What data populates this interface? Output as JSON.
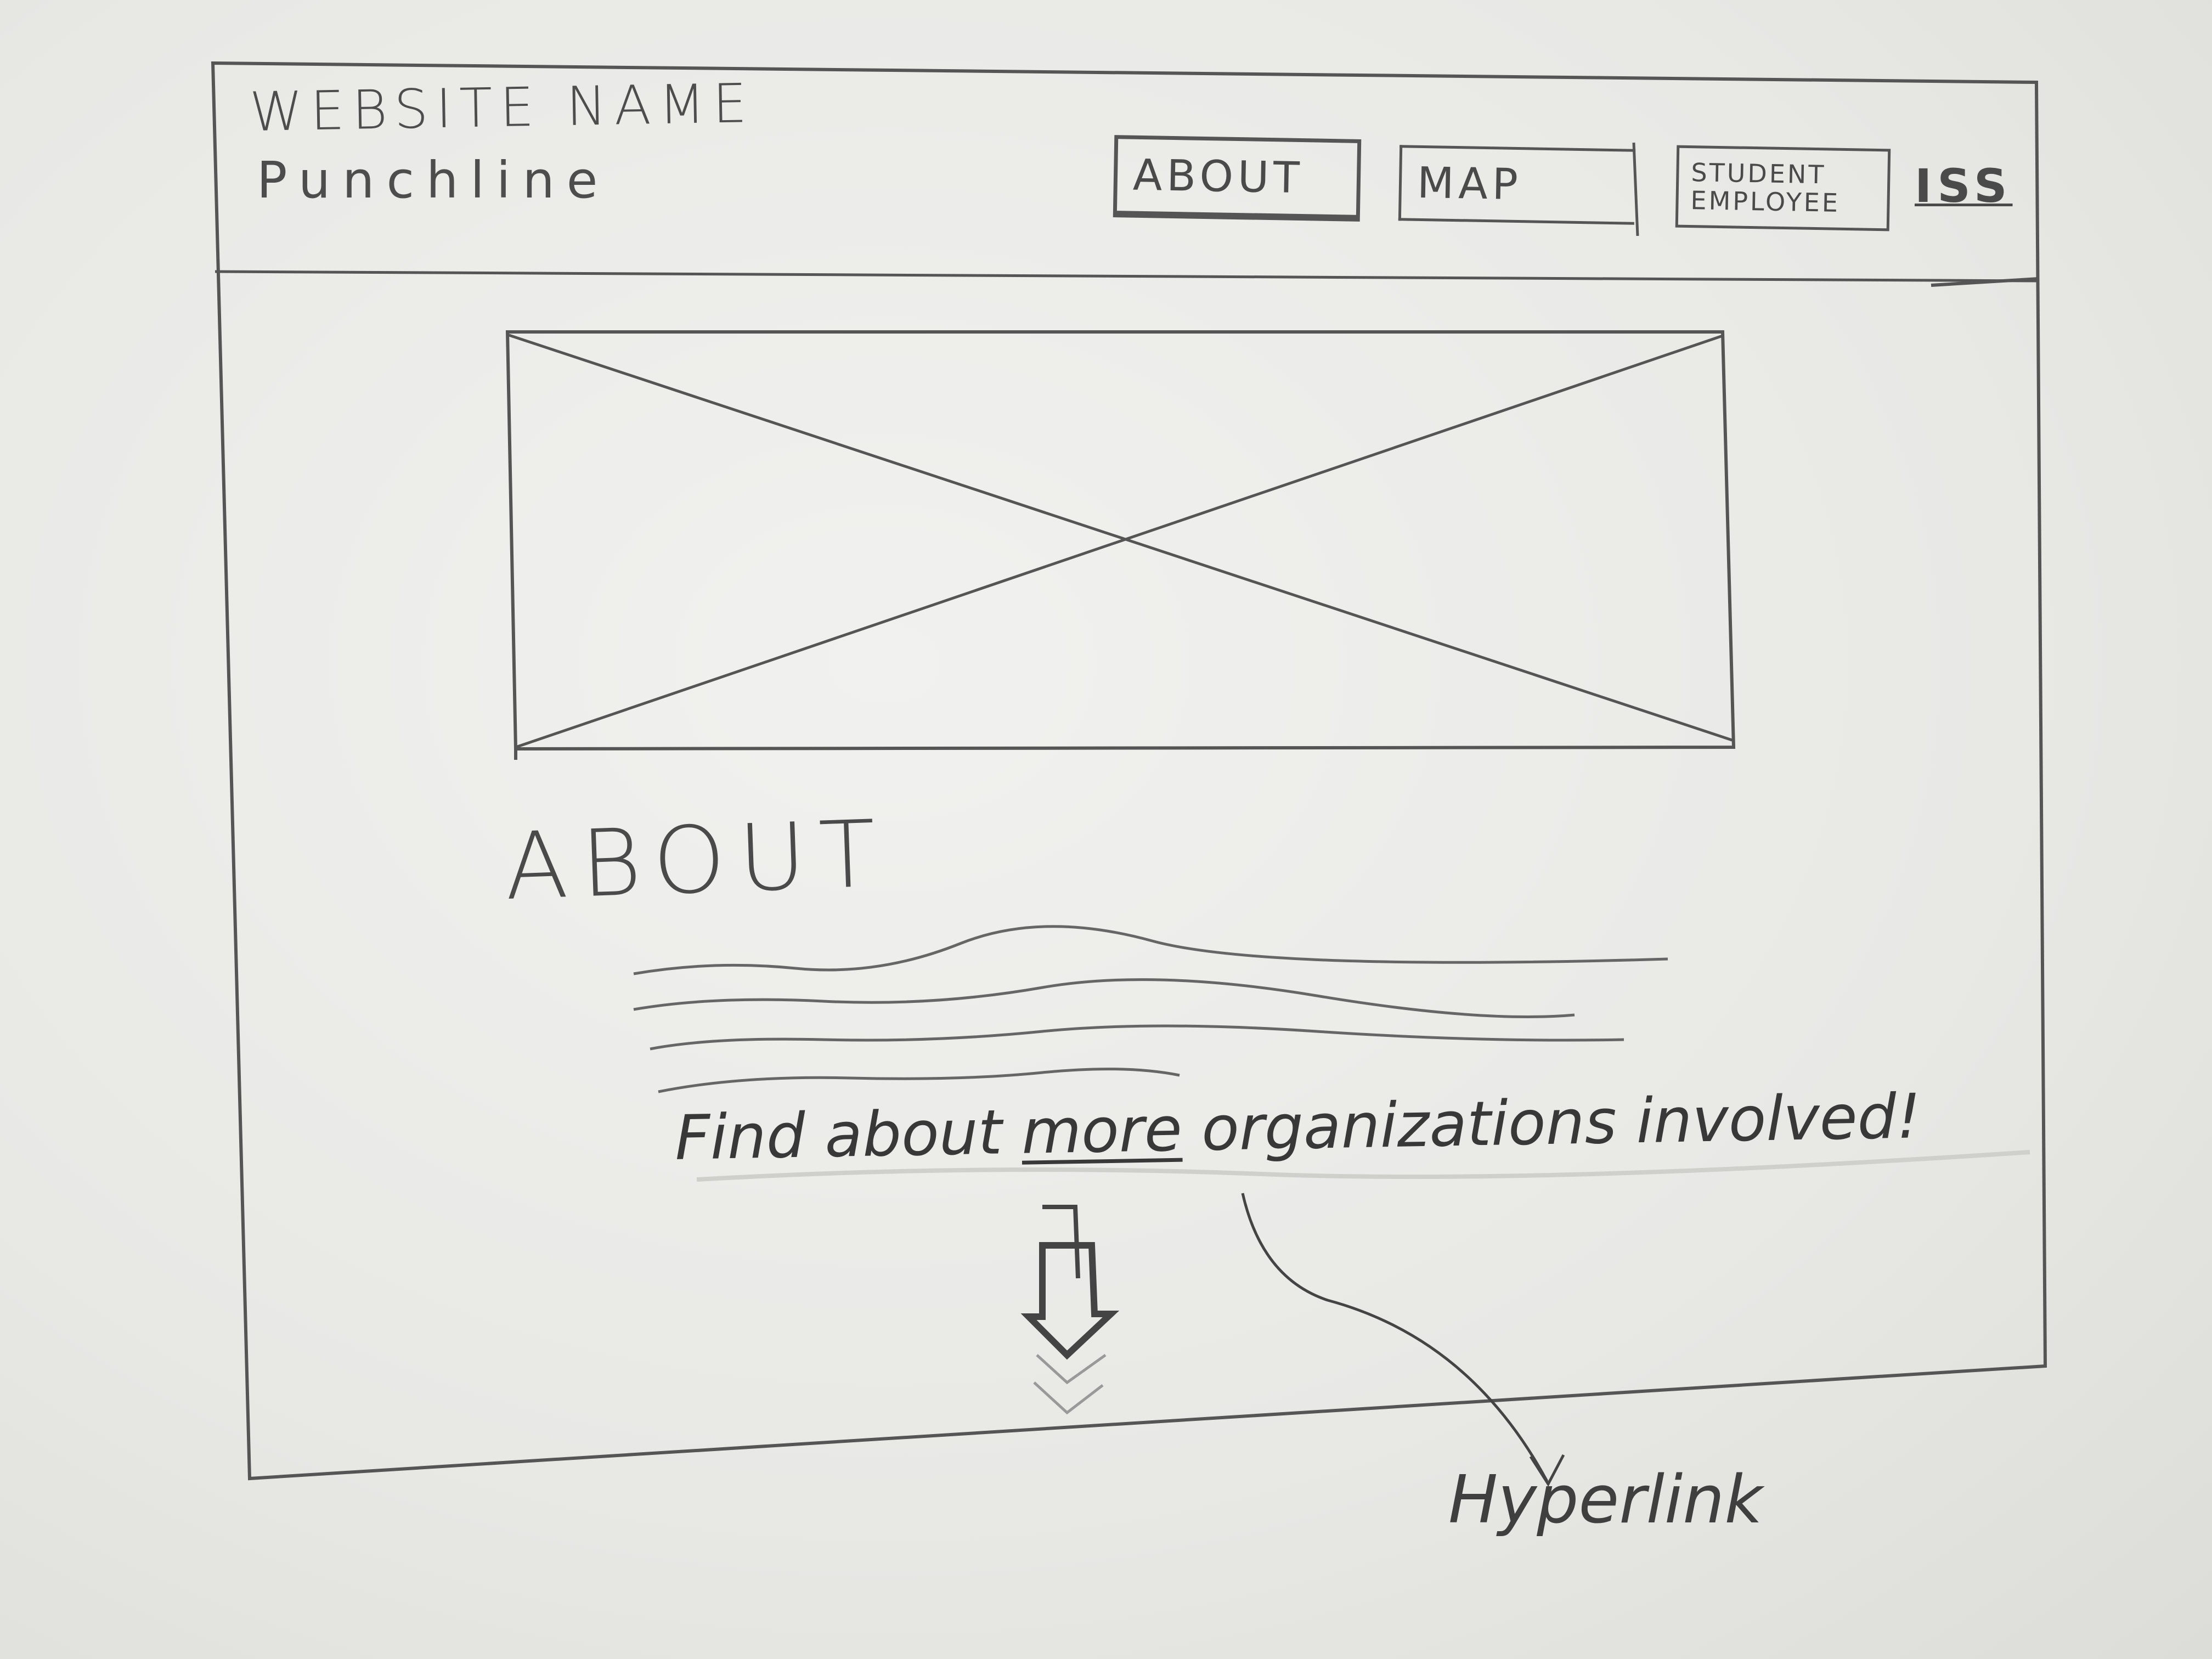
{
  "header": {
    "brand_name": "WEBSITE NAME",
    "punchline": "Punchline",
    "nav": {
      "about": "ABOUT",
      "map": "MAP",
      "student_employee_line1": "STUDENT",
      "student_employee_line2": "EMPLOYEE",
      "iss": "ISS"
    }
  },
  "main": {
    "hero_image": "image-placeholder",
    "about_heading": "ABOUT",
    "find_before": "Find about ",
    "find_link": "more",
    "find_after": " organizations involved!",
    "scroll_icon": "down-arrow-icon"
  },
  "annotation": {
    "label": "Hyperlink"
  },
  "colors": {
    "pencil": "#4a4a4a",
    "paper": "#efefec"
  }
}
